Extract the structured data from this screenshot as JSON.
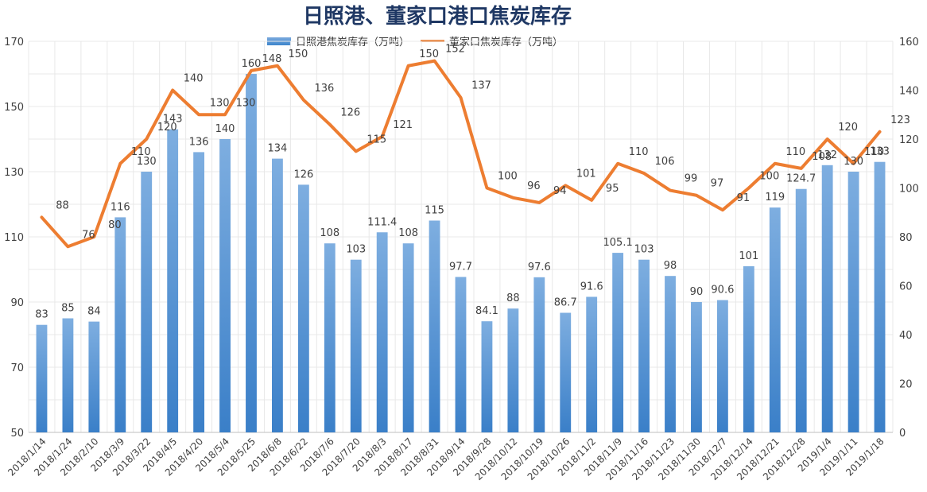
{
  "chart_data": {
    "type": "bar+line",
    "title": "日照港、董家口港口焦炭库存",
    "categories": [
      "2018/1/14",
      "2018/1/24",
      "2018/2/10",
      "2018/3/9",
      "2018/3/22",
      "2018/4/5",
      "2018/4/20",
      "2018/5/4",
      "2018/5/25",
      "2018/6/8",
      "2018/6/22",
      "2018/7/6",
      "2018/7/20",
      "2018/8/3",
      "2018/8/17",
      "2018/8/31",
      "2018/9/14",
      "2018/9/28",
      "2018/10/12",
      "2018/10/19",
      "2018/10/26",
      "2018/11/2",
      "2018/11/9",
      "2018/11/16",
      "2018/11/23",
      "2018/11/30",
      "2018/12/7",
      "2018/12/14",
      "2018/12/21",
      "2018/12/28",
      "2019/1/4",
      "2019/1/11",
      "2019/1/18"
    ],
    "series": [
      {
        "name": "日照港焦炭库存（万吨）",
        "type": "bar",
        "axis": "left",
        "color": "#5b9bd5",
        "values": [
          83,
          85,
          84,
          116,
          130,
          143,
          136,
          140,
          160,
          134,
          126,
          108,
          103,
          111.4,
          108,
          115,
          97.7,
          84.1,
          88,
          97.6,
          86.7,
          91.6,
          105.1,
          103,
          98,
          90,
          90.6,
          101,
          119,
          124.7,
          132,
          130,
          133
        ]
      },
      {
        "name": "董家口焦炭库存（万吨）",
        "type": "line",
        "axis": "right",
        "color": "#ed7d31",
        "values": [
          88,
          76,
          80,
          110,
          120,
          140,
          130,
          130,
          148,
          150,
          136,
          126,
          115,
          121,
          150,
          152,
          137,
          100,
          96,
          94,
          101,
          95,
          110,
          106,
          99,
          97,
          91,
          100,
          110,
          108,
          120,
          110,
          123
        ]
      }
    ],
    "ylim_left": [
      50,
      170
    ],
    "yticks_left": [
      50,
      70,
      90,
      110,
      130,
      150,
      170
    ],
    "ylim_right": [
      0,
      160
    ],
    "yticks_right": [
      0,
      20,
      40,
      60,
      80,
      100,
      120,
      140,
      160
    ],
    "grid": true,
    "legend_position": "top"
  }
}
